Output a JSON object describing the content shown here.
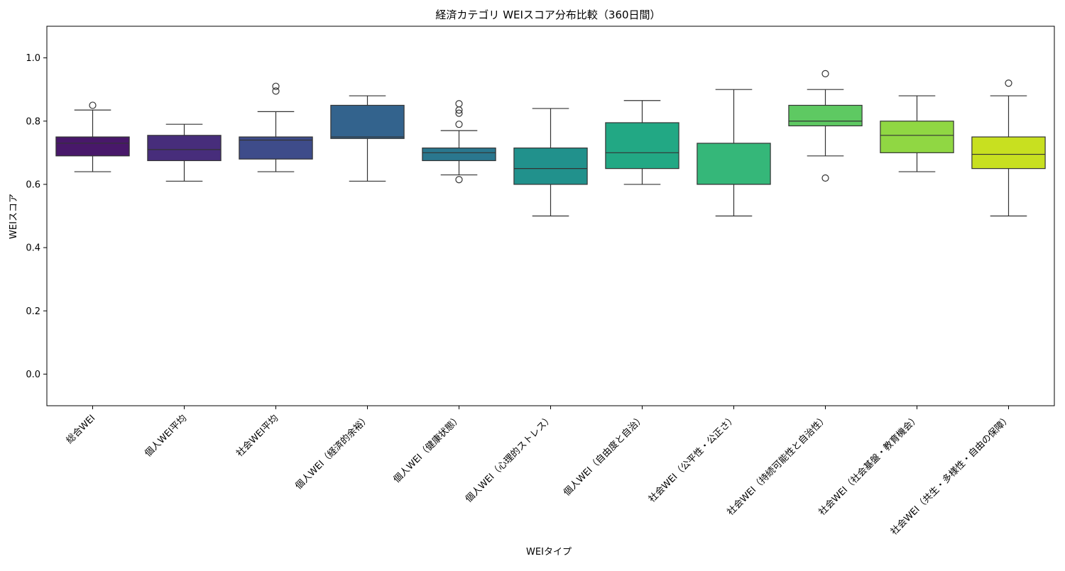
{
  "chart_data": {
    "type": "box",
    "title": "経済カテゴリ WEIスコア分布比較（360日間）",
    "xlabel": "WEIタイプ",
    "ylabel": "WEIスコア",
    "ylim": [
      -0.1,
      1.1
    ],
    "yticks": [
      "0.0",
      "0.2",
      "0.4",
      "0.6",
      "0.8",
      "1.0"
    ],
    "grid": false,
    "categories": [
      "総合WEI",
      "個人WEI平均",
      "社会WEI平均",
      "個人WEI（経済的余裕）",
      "個人WEI（健康状態）",
      "個人WEI（心理的ストレス）",
      "個人WEI（自由度と自治）",
      "社会WEI（公平性・公正さ）",
      "社会WEI（持続可能性と自治性）",
      "社会WEI（社会基盤・教育機会）",
      "社会WEI（共生・多様性・自由の保障）"
    ],
    "boxes": [
      {
        "whisker_low": 0.64,
        "q1": 0.69,
        "median": 0.73,
        "q3": 0.75,
        "whisker_high": 0.835,
        "outliers": [
          0.85
        ]
      },
      {
        "whisker_low": 0.61,
        "q1": 0.675,
        "median": 0.71,
        "q3": 0.755,
        "whisker_high": 0.79,
        "outliers": []
      },
      {
        "whisker_low": 0.64,
        "q1": 0.68,
        "median": 0.74,
        "q3": 0.75,
        "whisker_high": 0.83,
        "outliers": [
          0.895,
          0.91
        ]
      },
      {
        "whisker_low": 0.61,
        "q1": 0.745,
        "median": 0.75,
        "q3": 0.85,
        "whisker_high": 0.88,
        "outliers": []
      },
      {
        "whisker_low": 0.63,
        "q1": 0.675,
        "median": 0.7,
        "q3": 0.715,
        "whisker_high": 0.77,
        "outliers": [
          0.615,
          0.79,
          0.825,
          0.835,
          0.855
        ]
      },
      {
        "whisker_low": 0.5,
        "q1": 0.6,
        "median": 0.65,
        "q3": 0.715,
        "whisker_high": 0.84,
        "outliers": []
      },
      {
        "whisker_low": 0.6,
        "q1": 0.65,
        "median": 0.7,
        "q3": 0.795,
        "whisker_high": 0.865,
        "outliers": []
      },
      {
        "whisker_low": 0.5,
        "q1": 0.6,
        "median": 0.6,
        "q3": 0.73,
        "whisker_high": 0.9,
        "outliers": []
      },
      {
        "whisker_low": 0.69,
        "q1": 0.785,
        "median": 0.8,
        "q3": 0.85,
        "whisker_high": 0.9,
        "outliers": [
          0.62,
          0.95
        ]
      },
      {
        "whisker_low": 0.64,
        "q1": 0.7,
        "median": 0.755,
        "q3": 0.8,
        "whisker_high": 0.88,
        "outliers": []
      },
      {
        "whisker_low": 0.5,
        "q1": 0.65,
        "median": 0.695,
        "q3": 0.75,
        "whisker_high": 0.88,
        "outliers": [
          0.92
        ]
      }
    ],
    "colors": [
      "#48186a",
      "#472d7b",
      "#3e4c8a",
      "#33638d",
      "#2a778e",
      "#21918c",
      "#22a884",
      "#35b779",
      "#5ec962",
      "#90d743",
      "#c8e020"
    ]
  }
}
